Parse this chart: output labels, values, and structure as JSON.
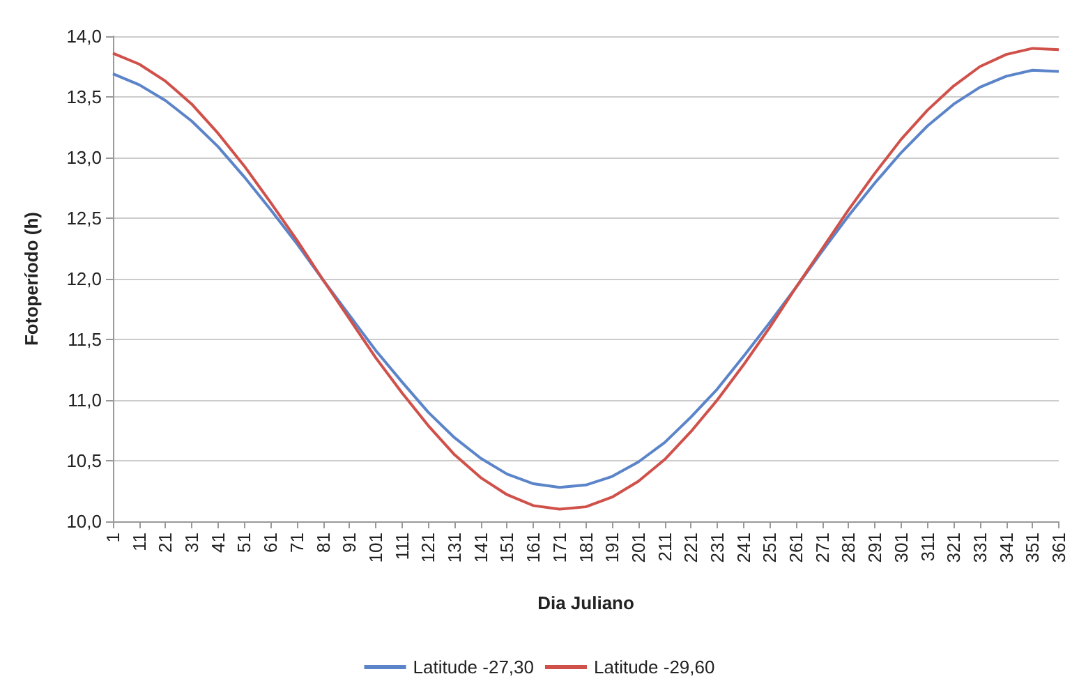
{
  "chart_data": {
    "type": "line",
    "xlabel": "Dia Juliano",
    "ylabel": "Fotoperíodo (h)",
    "categories": [
      "1",
      "11",
      "21",
      "31",
      "41",
      "51",
      "61",
      "71",
      "81",
      "91",
      "101",
      "111",
      "121",
      "131",
      "141",
      "151",
      "161",
      "171",
      "181",
      "191",
      "201",
      "211",
      "221",
      "231",
      "241",
      "251",
      "261",
      "271",
      "281",
      "291",
      "301",
      "311",
      "321",
      "331",
      "341",
      "351",
      "361"
    ],
    "series": [
      {
        "name": "Latitude -27,30",
        "color": "#5b84c9",
        "values": [
          13.69,
          13.6,
          13.47,
          13.3,
          13.09,
          12.84,
          12.57,
          12.29,
          11.99,
          11.7,
          11.41,
          11.15,
          10.9,
          10.69,
          10.52,
          10.39,
          10.31,
          10.28,
          10.3,
          10.37,
          10.49,
          10.65,
          10.86,
          11.09,
          11.36,
          11.64,
          11.93,
          12.23,
          12.52,
          12.79,
          13.04,
          13.26,
          13.44,
          13.58,
          13.67,
          13.72,
          13.71
        ]
      },
      {
        "name": "Latitude -29,60",
        "color": "#d0504a",
        "values": [
          13.86,
          13.77,
          13.63,
          13.44,
          13.2,
          12.93,
          12.63,
          12.32,
          11.99,
          11.67,
          11.35,
          11.06,
          10.79,
          10.55,
          10.36,
          10.22,
          10.13,
          10.1,
          10.12,
          10.2,
          10.33,
          10.51,
          10.74,
          11.0,
          11.29,
          11.6,
          11.93,
          12.25,
          12.57,
          12.87,
          13.15,
          13.39,
          13.59,
          13.75,
          13.85,
          13.9,
          13.89
        ]
      }
    ],
    "ylim": [
      10,
      14
    ],
    "yticks": [
      {
        "value": 10,
        "label": "10,0"
      },
      {
        "value": 10.5,
        "label": "10,5"
      },
      {
        "value": 11,
        "label": "11,0"
      },
      {
        "value": 11.5,
        "label": "11,5"
      },
      {
        "value": 12,
        "label": "12,0"
      },
      {
        "value": 12.5,
        "label": "12,5"
      },
      {
        "value": 13,
        "label": "13,0"
      },
      {
        "value": 13.5,
        "label": "13,5"
      },
      {
        "value": 14,
        "label": "14,0"
      }
    ],
    "grid": "y",
    "legend": "bottom",
    "marker": "none",
    "line_style": "solid"
  }
}
